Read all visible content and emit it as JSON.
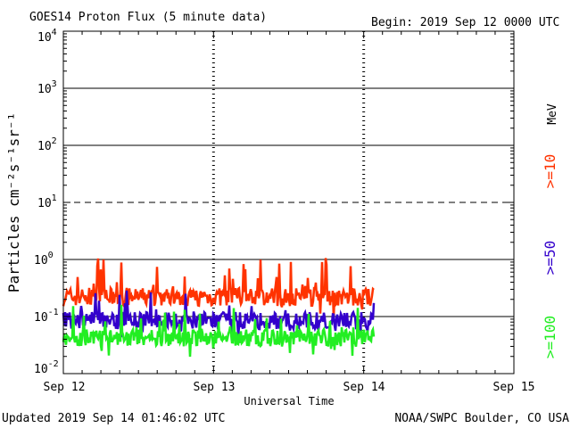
{
  "chart_data": {
    "type": "line",
    "title": "GOES14 Proton Flux (5 minute data)",
    "begin_label": "Begin: 2019 Sep 12 0000 UTC",
    "xlabel": "Universal Time",
    "ylabel": "Particles cm⁻²s⁻¹sr⁻¹",
    "units": "MeV",
    "footer_left": "Updated 2019 Sep 14 01:46:02 UTC",
    "footer_right": "NOAA/SWPC Boulder, CO USA",
    "x_ticks": [
      "Sep 12",
      "Sep 13",
      "Sep 14",
      "Sep 15"
    ],
    "xlim_days": [
      0,
      3
    ],
    "data_end_day": 2.07,
    "ylim_log10": [
      -2,
      4
    ],
    "y_ticks": [
      {
        "base": "10",
        "exp": "-2",
        "log10": -2
      },
      {
        "base": "10",
        "exp": "-1",
        "log10": -1
      },
      {
        "base": "10",
        "exp": "0",
        "log10": 0
      },
      {
        "base": "10",
        "exp": "1",
        "log10": 1
      },
      {
        "base": "10",
        "exp": "2",
        "log10": 2
      },
      {
        "base": "10",
        "exp": "3",
        "log10": 3
      },
      {
        "base": "10",
        "exp": "4",
        "log10": 4
      }
    ],
    "solid_grid_log10": [
      -1,
      0,
      2,
      3
    ],
    "dashed_grid_log10": [
      1
    ],
    "series": [
      {
        "name": ">=10 MeV",
        "label": ">=10",
        "color": "#ff3300",
        "base": 0.22,
        "spread": 0.32,
        "spike": 0.6
      },
      {
        "name": ">=50 MeV",
        "label": ">=50",
        "color": "#3300cc",
        "base": 0.085,
        "spread": 0.3,
        "spike": 0.55
      },
      {
        "name": ">=100 MeV",
        "label": ">=100",
        "color": "#22ee22",
        "base": 0.042,
        "spread": 0.3,
        "spike": 0.5
      }
    ]
  }
}
